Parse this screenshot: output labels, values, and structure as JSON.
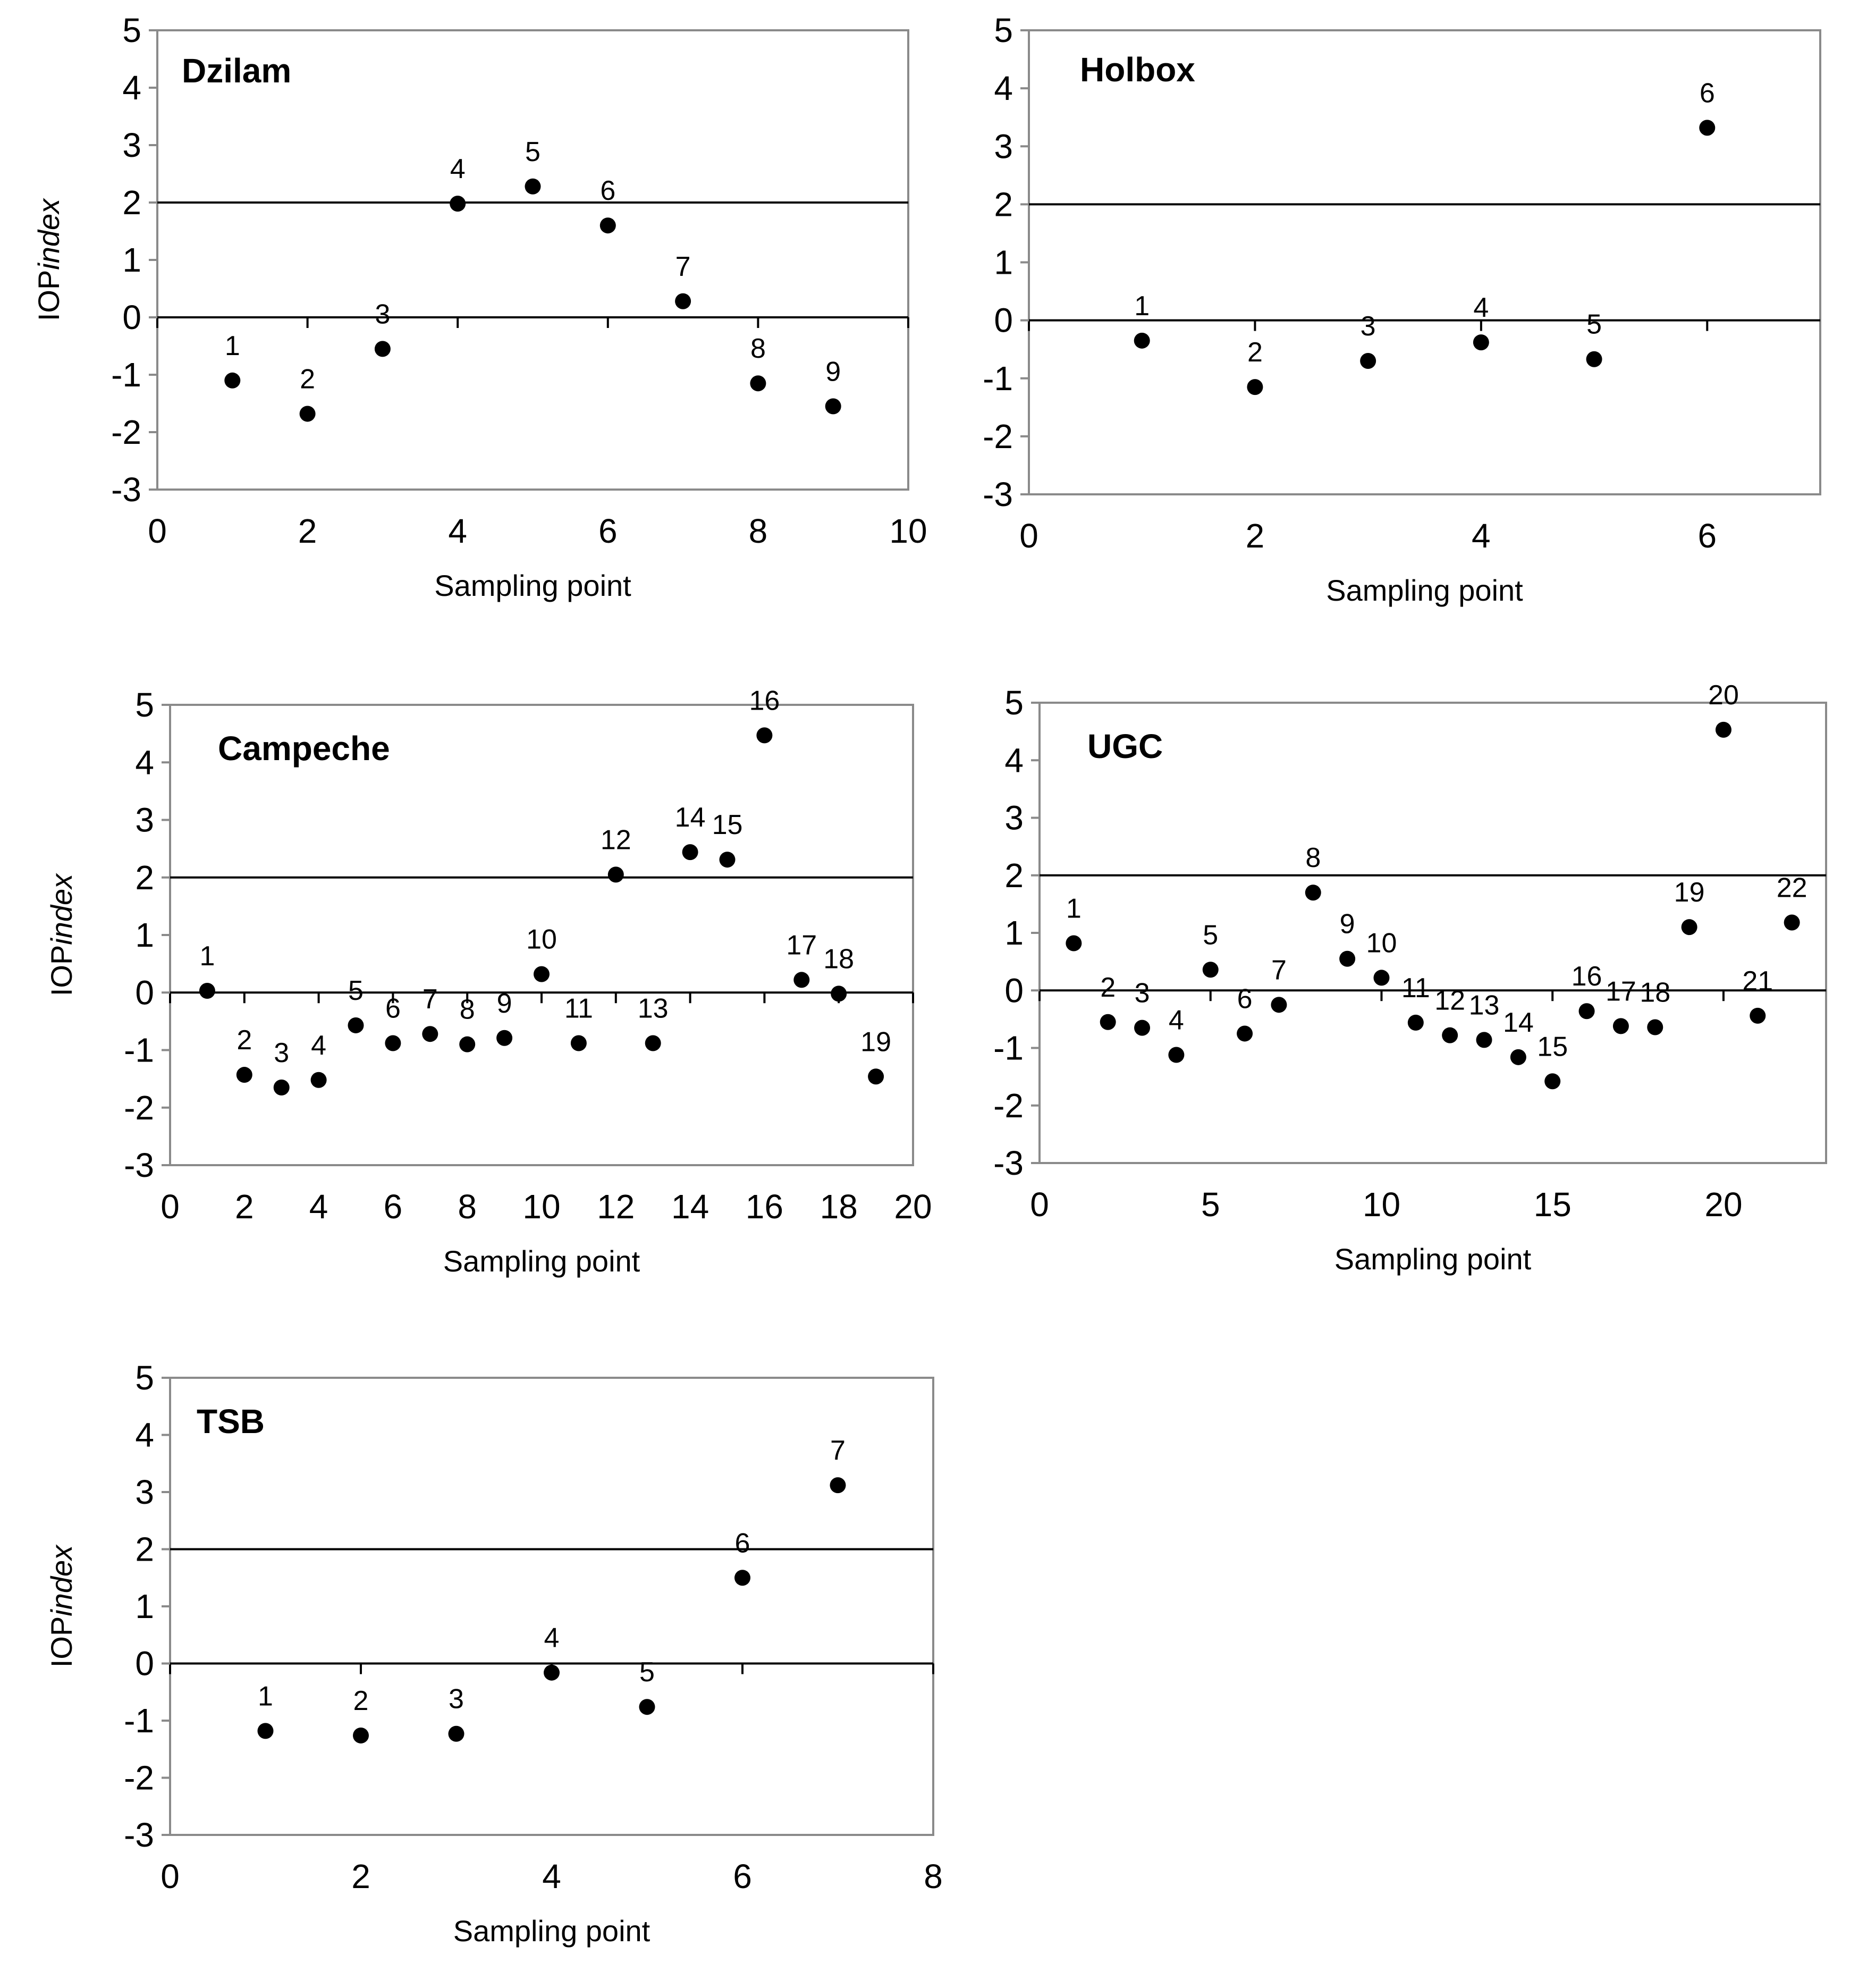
{
  "chart_data": [
    {
      "type": "scatter",
      "title": "Dzilam",
      "xlabel": "Sampling point",
      "ylabel": "IOPindex",
      "xlim": [
        0,
        10
      ],
      "ylim": [
        -3,
        5
      ],
      "xticks": [
        0,
        2,
        4,
        6,
        8,
        10
      ],
      "yticks": [
        -3,
        -2,
        -1,
        0,
        1,
        2,
        3,
        4,
        5
      ],
      "reference_lines": [
        0,
        2
      ],
      "grid": false,
      "points": [
        {
          "label": "1",
          "x": 1,
          "y": -1.1
        },
        {
          "label": "2",
          "x": 2,
          "y": -1.68
        },
        {
          "label": "3",
          "x": 3,
          "y": -0.55
        },
        {
          "label": "4",
          "x": 4,
          "y": 1.98
        },
        {
          "label": "5",
          "x": 5,
          "y": 2.28
        },
        {
          "label": "6",
          "x": 6,
          "y": 1.6
        },
        {
          "label": "7",
          "x": 7,
          "y": 0.28
        },
        {
          "label": "8",
          "x": 8,
          "y": -1.15
        },
        {
          "label": "9",
          "x": 9,
          "y": -1.55
        }
      ]
    },
    {
      "type": "scatter",
      "title": "Holbox",
      "xlabel": "Sampling point",
      "ylabel": "",
      "xlim": [
        0,
        7
      ],
      "ylim": [
        -3,
        5
      ],
      "xticks": [
        0,
        2,
        4,
        6
      ],
      "yticks": [
        -3,
        -2,
        -1,
        0,
        1,
        2,
        3,
        4,
        5
      ],
      "reference_lines": [
        0,
        2
      ],
      "grid": false,
      "points": [
        {
          "label": "1",
          "x": 1,
          "y": -0.35
        },
        {
          "label": "2",
          "x": 2,
          "y": -1.15
        },
        {
          "label": "3",
          "x": 3,
          "y": -0.7
        },
        {
          "label": "4",
          "x": 4,
          "y": -0.38
        },
        {
          "label": "5",
          "x": 5,
          "y": -0.67
        },
        {
          "label": "6",
          "x": 6,
          "y": 3.32
        }
      ]
    },
    {
      "type": "scatter",
      "title": "Campeche",
      "xlabel": "Sampling point",
      "ylabel": "IOPindex",
      "xlim": [
        0,
        20
      ],
      "ylim": [
        -3,
        5
      ],
      "xticks": [
        0,
        2,
        4,
        6,
        8,
        10,
        12,
        14,
        16,
        18,
        20
      ],
      "yticks": [
        -3,
        -2,
        -1,
        0,
        1,
        2,
        3,
        4,
        5
      ],
      "reference_lines": [
        0,
        2
      ],
      "grid": false,
      "points": [
        {
          "label": "1",
          "x": 1,
          "y": 0.03
        },
        {
          "label": "2",
          "x": 2,
          "y": -1.43
        },
        {
          "label": "3",
          "x": 3,
          "y": -1.65
        },
        {
          "label": "4",
          "x": 4,
          "y": -1.52
        },
        {
          "label": "5",
          "x": 5,
          "y": -0.57
        },
        {
          "label": "6",
          "x": 6,
          "y": -0.88
        },
        {
          "label": "7",
          "x": 7,
          "y": -0.72
        },
        {
          "label": "8",
          "x": 8,
          "y": -0.9
        },
        {
          "label": "9",
          "x": 9,
          "y": -0.79
        },
        {
          "label": "10",
          "x": 10,
          "y": 0.32
        },
        {
          "label": "11",
          "x": 11,
          "y": -0.88
        },
        {
          "label": "12",
          "x": 12,
          "y": 2.05
        },
        {
          "label": "13",
          "x": 13,
          "y": -0.88
        },
        {
          "label": "14",
          "x": 14,
          "y": 2.44
        },
        {
          "label": "15",
          "x": 15,
          "y": 2.31
        },
        {
          "label": "16",
          "x": 16,
          "y": 4.47
        },
        {
          "label": "17",
          "x": 17,
          "y": 0.22
        },
        {
          "label": "18",
          "x": 18,
          "y": -0.02
        },
        {
          "label": "19",
          "x": 19,
          "y": -1.46
        }
      ]
    },
    {
      "type": "scatter",
      "title": "UGC",
      "xlabel": "Sampling point",
      "ylabel": "",
      "xlim": [
        0,
        23
      ],
      "ylim": [
        -3,
        5
      ],
      "xticks": [
        0,
        5,
        10,
        15,
        20
      ],
      "yticks": [
        -3,
        -2,
        -1,
        0,
        1,
        2,
        3,
        4,
        5
      ],
      "reference_lines": [
        0,
        2
      ],
      "grid": false,
      "points": [
        {
          "label": "1",
          "x": 1,
          "y": 0.82
        },
        {
          "label": "2",
          "x": 2,
          "y": -0.55
        },
        {
          "label": "3",
          "x": 3,
          "y": -0.65
        },
        {
          "label": "4",
          "x": 4,
          "y": -1.12
        },
        {
          "label": "5",
          "x": 5,
          "y": 0.36
        },
        {
          "label": "6",
          "x": 6,
          "y": -0.75
        },
        {
          "label": "7",
          "x": 7,
          "y": -0.25
        },
        {
          "label": "8",
          "x": 8,
          "y": 1.7
        },
        {
          "label": "9",
          "x": 9,
          "y": 0.55
        },
        {
          "label": "10",
          "x": 10,
          "y": 0.22
        },
        {
          "label": "11",
          "x": 11,
          "y": -0.56
        },
        {
          "label": "12",
          "x": 12,
          "y": -0.78
        },
        {
          "label": "13",
          "x": 13,
          "y": -0.86
        },
        {
          "label": "14",
          "x": 14,
          "y": -1.16
        },
        {
          "label": "15",
          "x": 15,
          "y": -1.58
        },
        {
          "label": "16",
          "x": 16,
          "y": -0.36
        },
        {
          "label": "17",
          "x": 17,
          "y": -0.62
        },
        {
          "label": "18",
          "x": 18,
          "y": -0.64
        },
        {
          "label": "19",
          "x": 19,
          "y": 1.1
        },
        {
          "label": "20",
          "x": 20,
          "y": 4.53
        },
        {
          "label": "21",
          "x": 21,
          "y": -0.44
        },
        {
          "label": "22",
          "x": 22,
          "y": 1.18
        }
      ]
    },
    {
      "type": "scatter",
      "title": "TSB",
      "xlabel": "Sampling point",
      "ylabel": "IOPindex",
      "xlim": [
        0,
        8
      ],
      "ylim": [
        -3,
        5
      ],
      "xticks": [
        0,
        2,
        4,
        6,
        8
      ],
      "yticks": [
        -3,
        -2,
        -1,
        0,
        1,
        2,
        3,
        4,
        5
      ],
      "reference_lines": [
        0,
        2
      ],
      "grid": false,
      "points": [
        {
          "label": "1",
          "x": 1,
          "y": -1.18
        },
        {
          "label": "2",
          "x": 2,
          "y": -1.26
        },
        {
          "label": "3",
          "x": 3,
          "y": -1.23
        },
        {
          "label": "4",
          "x": 4,
          "y": -0.16
        },
        {
          "label": "5",
          "x": 5,
          "y": -0.76
        },
        {
          "label": "6",
          "x": 6,
          "y": 1.5
        },
        {
          "label": "7",
          "x": 7,
          "y": 3.12
        }
      ]
    }
  ]
}
